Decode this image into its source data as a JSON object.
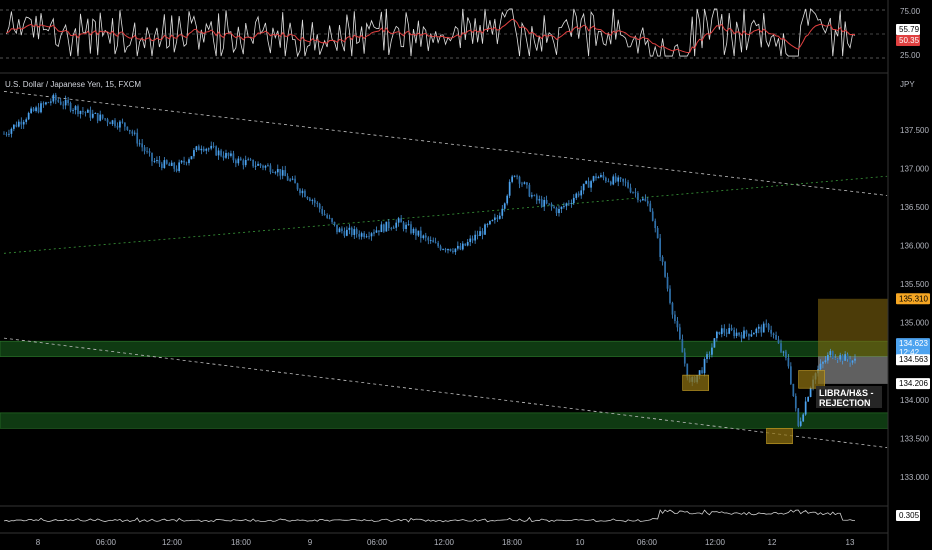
{
  "colors": {
    "background": "#000000",
    "candle": "#4da3ef",
    "rsi_line": "#e0e0e0",
    "rsi_ma": "#e04040",
    "zone_green": "#0f3a12",
    "zone_yellow": "#8a6d10",
    "trendline": "#c0c0c0",
    "green_trend": "#3a9a3a",
    "tag_orange": "#f5a623",
    "tag_blue": "#4da3ef"
  },
  "chart_data": [
    {
      "type": "line",
      "panel": "rsi",
      "ylim": [
        15,
        85
      ],
      "yticks": [
        "75.00",
        "25.00"
      ],
      "levels": [
        70,
        50,
        30
      ],
      "current_value_tags": [
        "55.79",
        "50.35"
      ],
      "series": []
    },
    {
      "type": "candlestick",
      "panel": "price",
      "title": "U.S. Dollar / Japanese Yen, 15, FXCM",
      "currency": "JPY",
      "ylim": [
        132.7,
        138.2
      ],
      "yticks": [
        "137.500",
        "137.000",
        "136.500",
        "136.000",
        "135.500",
        "135.000",
        "134.500",
        "134.000",
        "133.500",
        "133.000"
      ],
      "xticks": [
        "8",
        "06:00",
        "12:00",
        "18:00",
        "9",
        "06:00",
        "12:00",
        "18:00",
        "10",
        "06:00",
        "12:00",
        "12",
        "13"
      ],
      "n_bars": 320,
      "price_path_keypoints": [
        [
          0,
          137.45
        ],
        [
          10,
          137.7
        ],
        [
          20,
          137.9
        ],
        [
          35,
          137.7
        ],
        [
          50,
          137.55
        ],
        [
          60,
          137.1
        ],
        [
          70,
          137.0
        ],
        [
          80,
          137.3
        ],
        [
          95,
          137.1
        ],
        [
          110,
          137.0
        ],
        [
          125,
          136.6
        ],
        [
          135,
          136.2
        ],
        [
          145,
          136.15
        ],
        [
          160,
          136.3
        ],
        [
          175,
          136.0
        ],
        [
          185,
          135.95
        ],
        [
          200,
          136.35
        ],
        [
          207,
          136.95
        ],
        [
          215,
          136.6
        ],
        [
          225,
          136.45
        ],
        [
          240,
          136.9
        ],
        [
          252,
          136.8
        ],
        [
          262,
          136.5
        ],
        [
          270,
          135.3
        ],
        [
          278,
          134.2
        ],
        [
          283,
          134.4
        ],
        [
          290,
          134.9
        ],
        [
          300,
          134.85
        ],
        [
          310,
          134.95
        ],
        [
          318,
          134.45
        ],
        [
          322,
          133.65
        ],
        [
          328,
          134.3
        ],
        [
          335,
          134.6
        ],
        [
          345,
          134.5
        ]
      ],
      "horizontal_zones": [
        {
          "from": 134.56,
          "to": 134.76,
          "color": "green"
        },
        {
          "from": 133.63,
          "to": 133.83,
          "color": "green"
        }
      ],
      "touch_boxes": [
        {
          "price_from": 134.12,
          "price_to": 134.32,
          "at_bar": 280
        },
        {
          "price_from": 133.43,
          "price_to": 133.63,
          "at_bar": 314
        },
        {
          "price_from": 134.15,
          "price_to": 134.38,
          "at_bar": 327
        }
      ],
      "trendlines": [
        {
          "from": [
            0,
            138.0
          ],
          "to": [
            358,
            136.65
          ],
          "style": "dotted"
        },
        {
          "from": [
            0,
            134.8
          ],
          "to": [
            358,
            133.38
          ],
          "style": "dotted"
        },
        {
          "from": [
            0,
            135.9
          ],
          "to": [
            358,
            136.9
          ],
          "style": "dotted-green"
        }
      ],
      "position_box": {
        "entry": 134.563,
        "target": 135.31,
        "stop": 134.206,
        "from_bar": 330
      },
      "annotations": [
        "LIBRA/H&S -\nREJECTION"
      ],
      "price_tags": [
        {
          "label": "135.310",
          "price": 135.31,
          "color": "orange"
        },
        {
          "label": "134.623\n12:42",
          "price": 134.67,
          "color": "blue"
        },
        {
          "label": "134.563",
          "price": 134.52,
          "color": "white"
        },
        {
          "label": "134.206",
          "price": 134.21,
          "color": "white"
        }
      ]
    },
    {
      "type": "line",
      "panel": "volume",
      "current_value_tag": "0.305",
      "series": []
    }
  ]
}
